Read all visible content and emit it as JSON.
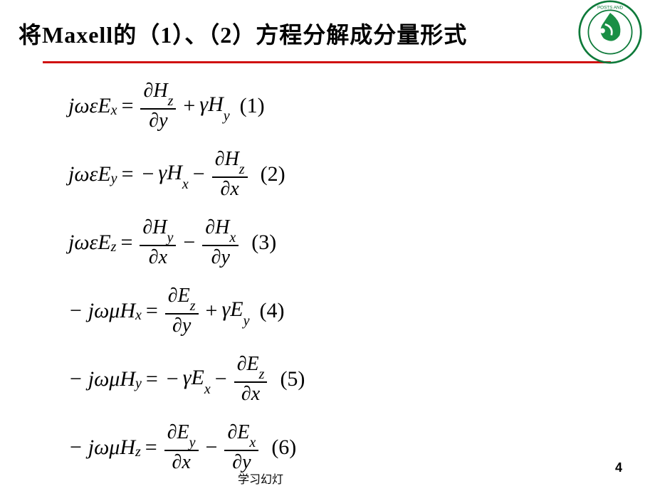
{
  "title": "将Maxell的（1）、（2）方程分解成分量形式",
  "underline_color": "#d01010",
  "logo": {
    "outer_color": "#0e7a3a",
    "inner_color": "#1a8f45",
    "text_color": "#0e7a3a"
  },
  "equations": [
    {
      "lhs": "jωεE",
      "lhs_sub": "x",
      "rhs_terms": [
        {
          "type": "frac",
          "num_sym": "∂H",
          "num_sub": "z",
          "den_sym": "∂y",
          "sign": ""
        },
        {
          "type": "term",
          "sign": "+",
          "coef": "γH",
          "sub": "y"
        }
      ],
      "label": "(1)"
    },
    {
      "lhs": "jωεE",
      "lhs_sub": "y",
      "rhs_terms": [
        {
          "type": "term",
          "sign": "−",
          "coef": "γH",
          "sub": "x"
        },
        {
          "type": "frac",
          "num_sym": "∂H",
          "num_sub": "z",
          "den_sym": "∂x",
          "sign": "−"
        }
      ],
      "label": "(2)"
    },
    {
      "lhs": "jωεE",
      "lhs_sub": "z",
      "rhs_terms": [
        {
          "type": "frac",
          "num_sym": "∂H",
          "num_sub": "y",
          "den_sym": "∂x",
          "sign": ""
        },
        {
          "type": "frac",
          "num_sym": "∂H",
          "num_sub": "x",
          "den_sym": "∂y",
          "sign": "−"
        }
      ],
      "label": "(3)"
    },
    {
      "lhs": "− jωμH",
      "lhs_sub": "x",
      "rhs_terms": [
        {
          "type": "frac",
          "num_sym": "∂E",
          "num_sub": "z",
          "den_sym": "∂y",
          "sign": ""
        },
        {
          "type": "term",
          "sign": "+",
          "coef": "γE",
          "sub": "y"
        }
      ],
      "label": "(4)"
    },
    {
      "lhs": "− jωμH",
      "lhs_sub": "y",
      "rhs_terms": [
        {
          "type": "term",
          "sign": "−",
          "coef": "γE",
          "sub": "x"
        },
        {
          "type": "frac",
          "num_sym": "∂E",
          "num_sub": "z",
          "den_sym": "∂x",
          "sign": "−"
        }
      ],
      "label": "(5)"
    },
    {
      "lhs": "− jωμH",
      "lhs_sub": "z",
      "rhs_terms": [
        {
          "type": "frac",
          "num_sym": "∂E",
          "num_sub": "y",
          "den_sym": "∂x",
          "sign": ""
        },
        {
          "type": "frac",
          "num_sym": "∂E",
          "num_sub": "x",
          "den_sym": "∂y",
          "sign": "−"
        }
      ],
      "label": "(6)"
    }
  ],
  "footer": "学习幻灯",
  "page_number": "4"
}
